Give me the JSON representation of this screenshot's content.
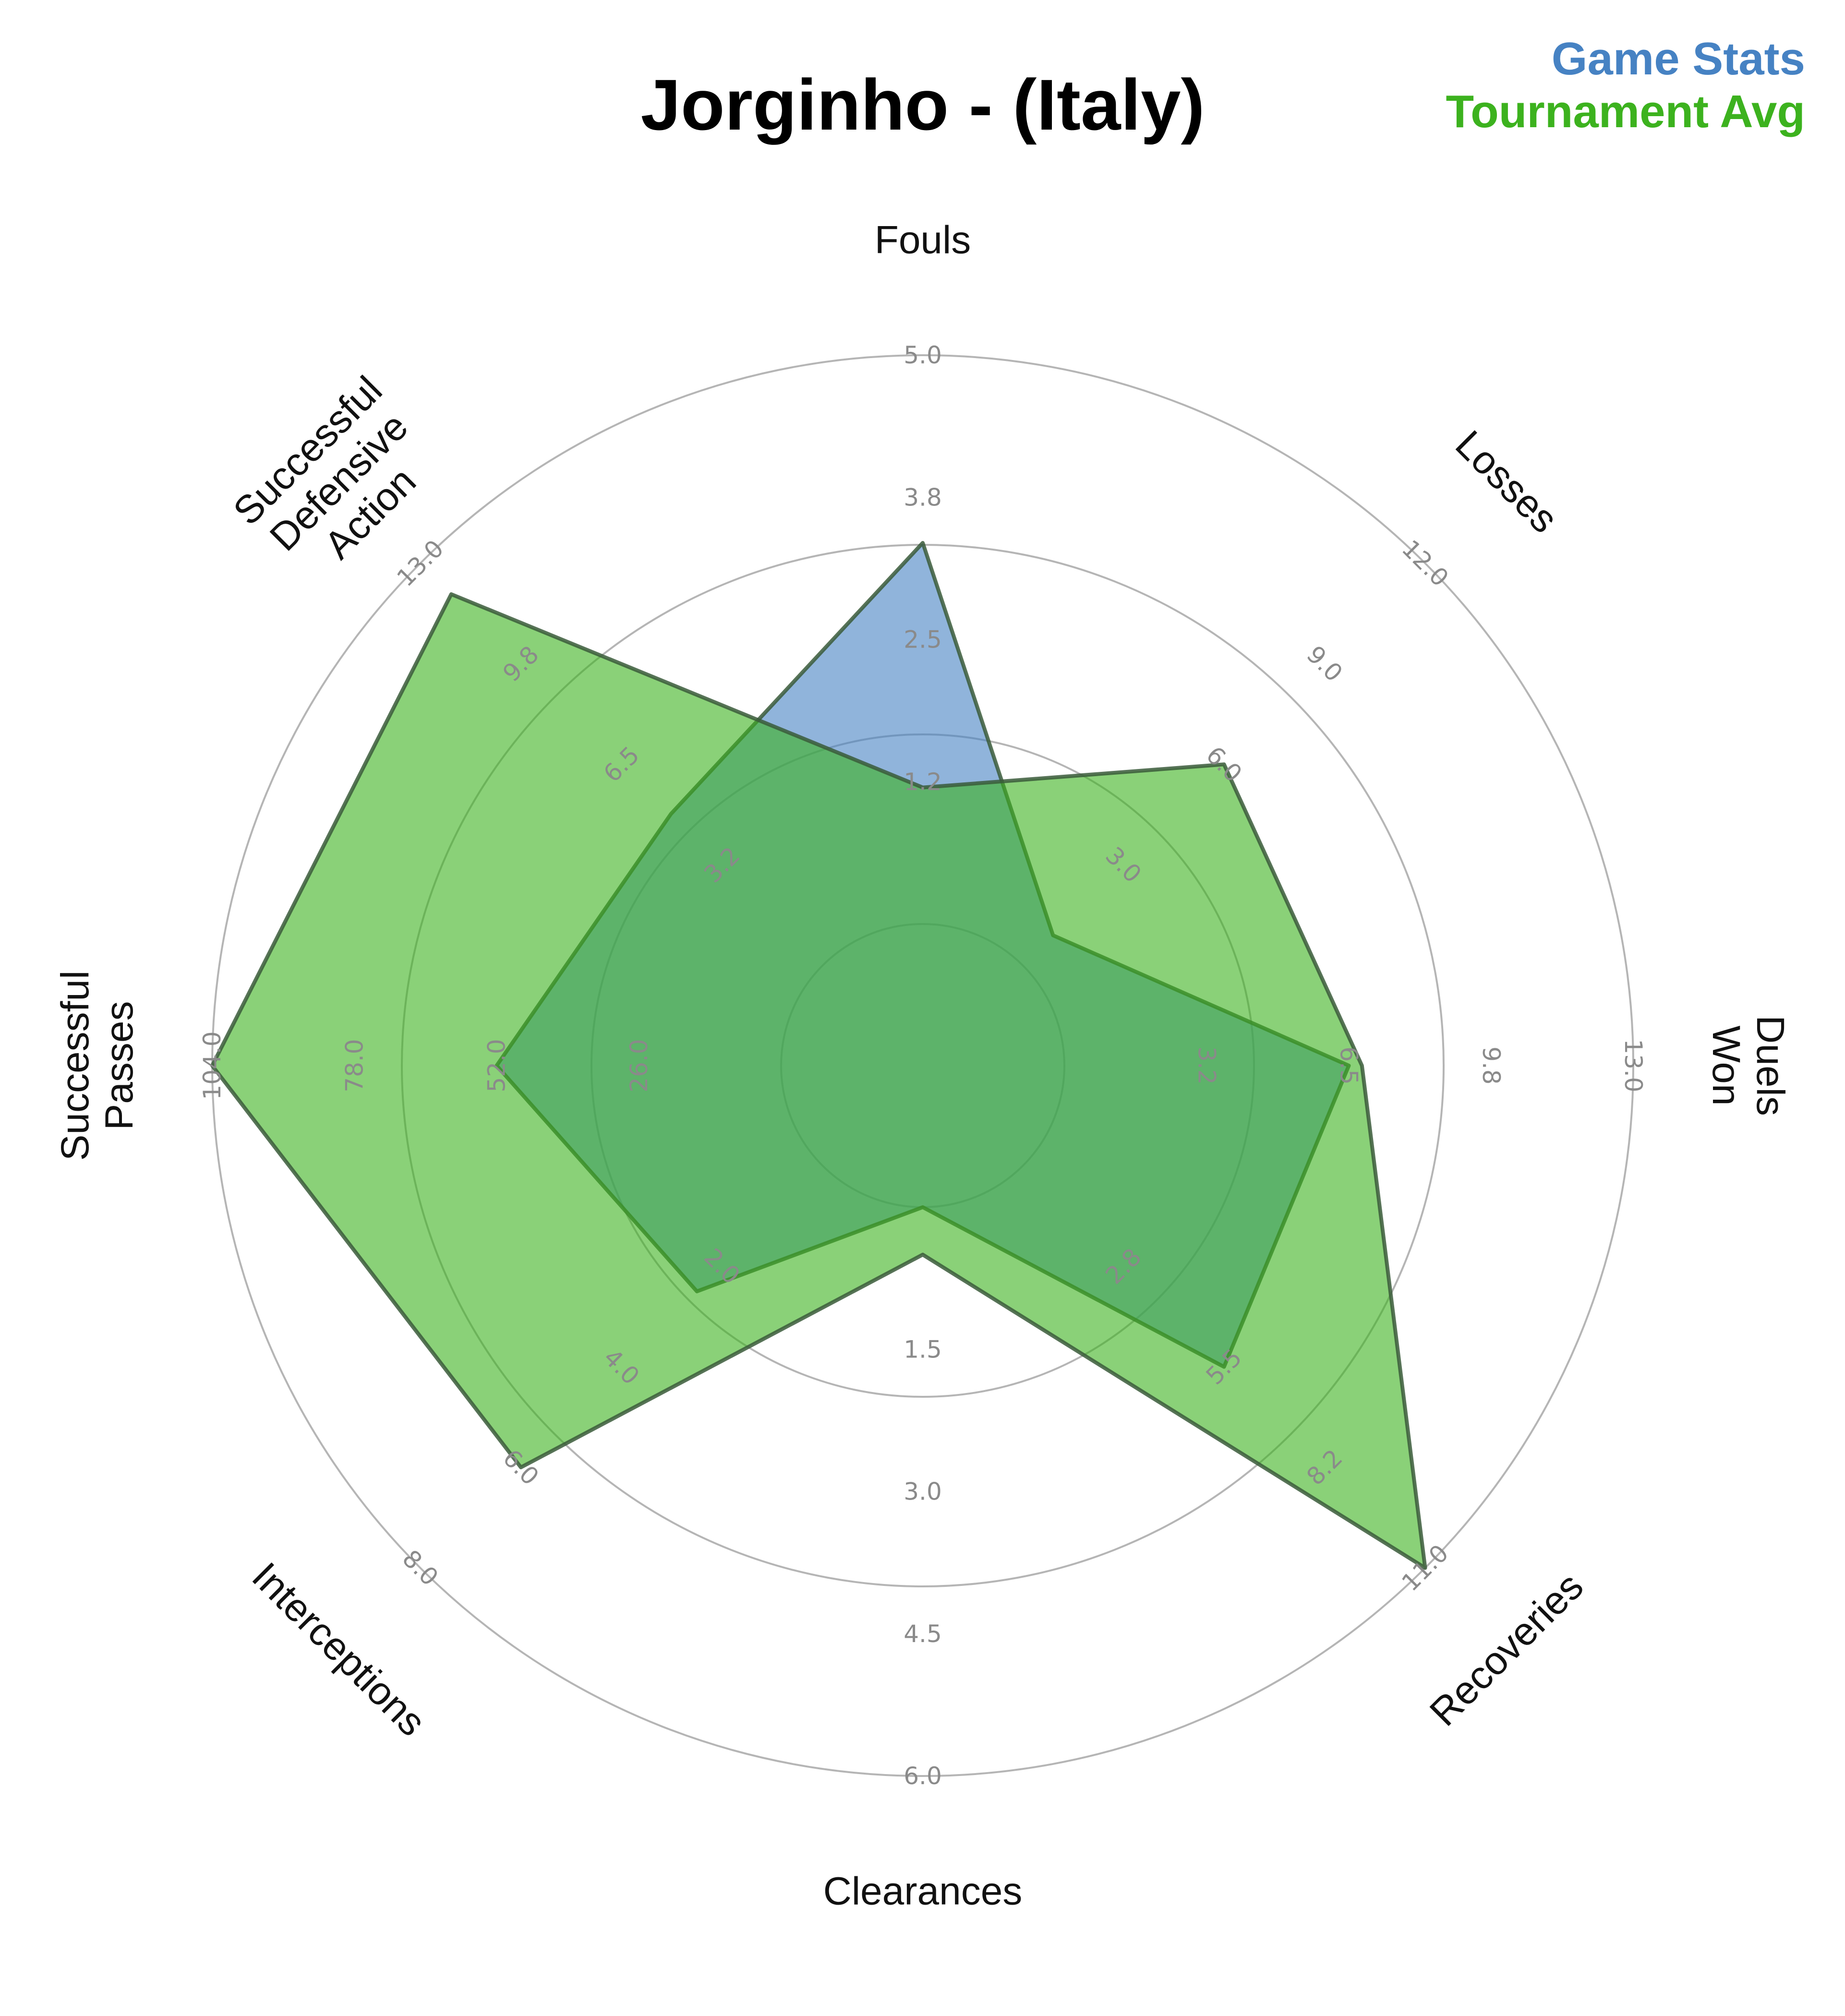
{
  "chart_data": {
    "type": "radar",
    "title": "Jorginho - (Italy)",
    "axes": [
      {
        "name": "Fouls",
        "ticks": [
          "1.2",
          "2.5",
          "3.8",
          "5.0"
        ],
        "max": 5.0
      },
      {
        "name": "Losses",
        "ticks": [
          "3.0",
          "6.0",
          "9.0",
          "12.0"
        ],
        "max": 12.0
      },
      {
        "name": "Duels Won",
        "ticks": [
          "3.2",
          "6.5",
          "9.8",
          "13.0"
        ],
        "max": 13.0
      },
      {
        "name": "Recoveries",
        "ticks": [
          "2.8",
          "5.5",
          "8.2",
          "11.0"
        ],
        "max": 11.0
      },
      {
        "name": "Clearances",
        "ticks": [
          "1.5",
          "3.0",
          "4.5",
          "6.0"
        ],
        "max": 6.0
      },
      {
        "name": "Interceptions",
        "ticks": [
          "2.0",
          "4.0",
          "6.0",
          "8.0"
        ],
        "max": 8.0
      },
      {
        "name": "Successful Passes",
        "ticks": [
          "26.0",
          "52.0",
          "78.0",
          "104.0"
        ],
        "max": 104.0
      },
      {
        "name": "Successful Defensive Action",
        "ticks": [
          "3.2",
          "6.5",
          "9.8",
          "13.0"
        ],
        "max": 13.0
      }
    ],
    "series": [
      {
        "name": "Game Stats",
        "color": "#4682c3",
        "values": [
          3.35,
          0.9,
          6.5,
          5.5,
          0.0,
          2.5,
          52.0,
          4.9
        ]
      },
      {
        "name": "Tournament Avg",
        "color": "#3cb21e",
        "values": [
          1.2,
          6.0,
          6.8,
          11.0,
          0.5,
          6.0,
          104.0,
          12.0
        ]
      }
    ],
    "legend_position": "top-right",
    "grid": true
  }
}
